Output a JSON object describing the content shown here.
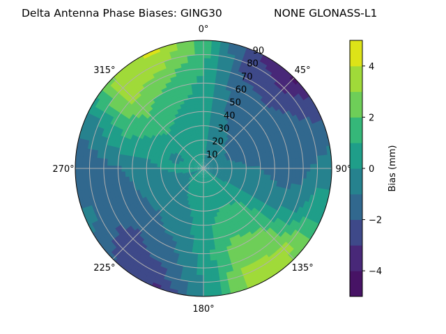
{
  "chart_data": {
    "type": "polar-contour",
    "title_left": "Delta Antenna Phase Biases: GING30",
    "title_right": "NONE GLONASS-L1",
    "theta_direction": "clockwise",
    "theta_zero": "top",
    "theta_tick_labels": [
      "0°",
      "45°",
      "90°",
      "135°",
      "180°",
      "225°",
      "270°",
      "315°"
    ],
    "r_tick_labels": [
      "10",
      "20",
      "30",
      "40",
      "50",
      "60",
      "70",
      "80",
      "90"
    ],
    "r_range": [
      0,
      90
    ],
    "grid": true,
    "colorbar": {
      "label": "Bias (mm)",
      "levels": [
        -5,
        -4,
        -3,
        -2,
        -1,
        0,
        1,
        2,
        3,
        4,
        5
      ],
      "colors": [
        "#471365",
        "#482878",
        "#3e4989",
        "#31688e",
        "#26828e",
        "#1f9e89",
        "#35b779",
        "#6ece58",
        "#a0da39",
        "#dde318"
      ],
      "tick_values": [
        -4,
        -2,
        0,
        2,
        4
      ],
      "tick_labels": [
        "−4",
        "−2",
        "0",
        "2",
        "4"
      ]
    },
    "azimuths": [
      0,
      22.5,
      45,
      67.5,
      90,
      112.5,
      135,
      157.5,
      180,
      202.5,
      225,
      247.5,
      270,
      292.5,
      315,
      337.5
    ],
    "zeniths": [
      0,
      10,
      20,
      30,
      40,
      50,
      60,
      70,
      80,
      90
    ],
    "values": [
      [
        0.0,
        0.2,
        0.3,
        0.5,
        0.6,
        0.7,
        0.8,
        1.0,
        1.5,
        1.8
      ],
      [
        0.0,
        -0.3,
        -0.5,
        -0.8,
        -1.0,
        -1.2,
        -1.5,
        -2.0,
        -2.5,
        -2.8
      ],
      [
        0.0,
        -0.6,
        -1.0,
        -1.2,
        -1.4,
        -1.6,
        -1.8,
        -2.5,
        -3.3,
        -4.2
      ],
      [
        0.0,
        -0.7,
        -1.1,
        -1.4,
        -1.6,
        -1.6,
        -1.5,
        -1.5,
        -1.8,
        -2.2
      ],
      [
        0.0,
        -0.5,
        -0.7,
        -0.9,
        -1.0,
        -1.2,
        -1.4,
        -1.3,
        -0.8,
        -0.3
      ],
      [
        0.0,
        -0.3,
        -0.4,
        -0.5,
        -0.6,
        -0.8,
        -0.7,
        -0.4,
        0.8,
        0.5
      ],
      [
        0.0,
        0.3,
        0.6,
        0.9,
        1.3,
        1.7,
        2.0,
        2.5,
        3.2,
        3.0
      ],
      [
        0.0,
        0.3,
        0.6,
        1.0,
        1.5,
        1.8,
        2.5,
        2.8,
        3.3,
        3.5
      ],
      [
        0.0,
        0.3,
        0.4,
        0.5,
        0.6,
        0.6,
        0.5,
        0.3,
        0.1,
        -0.2
      ],
      [
        0.0,
        0.3,
        0.3,
        -0.1,
        -0.5,
        -0.8,
        -1.3,
        -1.7,
        -2.3,
        -3.3
      ],
      [
        0.0,
        0.2,
        -0.3,
        -0.6,
        -0.9,
        -1.2,
        -1.8,
        -2.4,
        -2.6,
        -1.8
      ],
      [
        0.0,
        -0.1,
        -0.4,
        -0.6,
        -0.8,
        -1.1,
        -1.5,
        -1.5,
        -1.0,
        -0.6
      ],
      [
        0.0,
        0.3,
        0.2,
        0.0,
        -0.4,
        -0.8,
        -1.1,
        -1.4,
        -1.7,
        -1.9
      ],
      [
        0.0,
        0.4,
        -0.3,
        0.3,
        0.6,
        0.8,
        1.0,
        0.5,
        -0.3,
        -0.6
      ],
      [
        0.0,
        0.4,
        0.5,
        0.7,
        1.3,
        1.8,
        2.5,
        3.3,
        3.6,
        3.0
      ],
      [
        0.0,
        0.4,
        0.5,
        0.6,
        0.8,
        1.2,
        1.6,
        2.4,
        3.5,
        4.3
      ]
    ]
  }
}
